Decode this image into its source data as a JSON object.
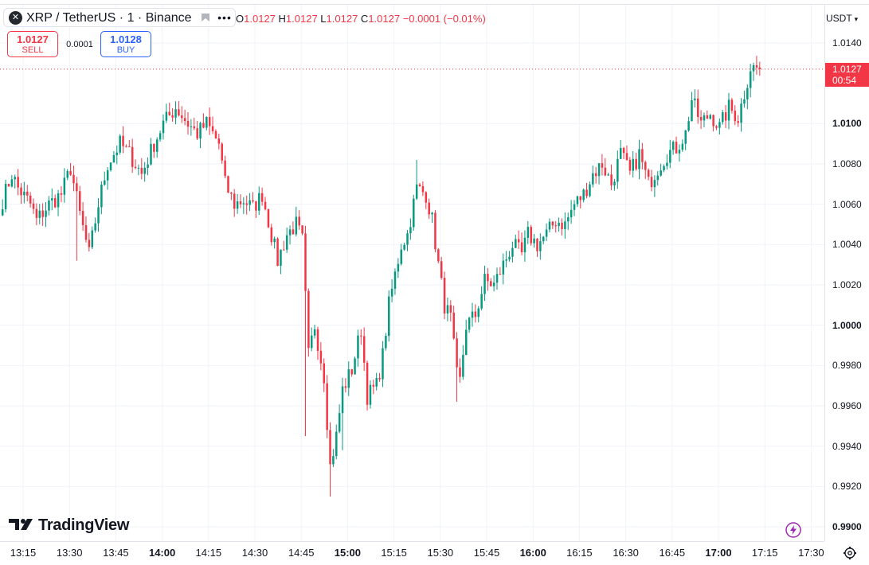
{
  "symbol": {
    "logo_glyph": "✕",
    "title": "XRP / TetherUS · 1 · Binance",
    "more_glyph": "•••"
  },
  "ohlc": {
    "o_label": "O",
    "o_value": "1.0127",
    "h_label": "H",
    "h_value": "1.0127",
    "l_label": "L",
    "l_value": "1.0127",
    "c_label": "C",
    "c_value": "1.0127",
    "change": "−0.0001 (−0.01%)"
  },
  "trade": {
    "sell_price": "1.0127",
    "sell_label": "SELL",
    "spread": "0.0001",
    "buy_price": "1.0128",
    "buy_label": "BUY"
  },
  "price_axis": {
    "currency": "USDT",
    "ticks": [
      {
        "label": "1.0140",
        "bold": false
      },
      {
        "label": "1.0100",
        "bold": true
      },
      {
        "label": "1.0080",
        "bold": false
      },
      {
        "label": "1.0060",
        "bold": false
      },
      {
        "label": "1.0040",
        "bold": false
      },
      {
        "label": "1.0020",
        "bold": false
      },
      {
        "label": "1.0000",
        "bold": true
      },
      {
        "label": "0.9980",
        "bold": false
      },
      {
        "label": "0.9960",
        "bold": false
      },
      {
        "label": "0.9940",
        "bold": false
      },
      {
        "label": "0.9920",
        "bold": false
      },
      {
        "label": "0.9900",
        "bold": true
      }
    ],
    "last_price": "1.0127",
    "countdown": "00:54"
  },
  "time_axis": {
    "ticks": [
      {
        "label": "13:15",
        "bold": false
      },
      {
        "label": "13:30",
        "bold": false
      },
      {
        "label": "13:45",
        "bold": false
      },
      {
        "label": "14:00",
        "bold": true
      },
      {
        "label": "14:15",
        "bold": false
      },
      {
        "label": "14:30",
        "bold": false
      },
      {
        "label": "14:45",
        "bold": false
      },
      {
        "label": "15:00",
        "bold": true
      },
      {
        "label": "15:15",
        "bold": false
      },
      {
        "label": "15:30",
        "bold": false
      },
      {
        "label": "15:45",
        "bold": false
      },
      {
        "label": "16:00",
        "bold": true
      },
      {
        "label": "16:15",
        "bold": false
      },
      {
        "label": "16:30",
        "bold": false
      },
      {
        "label": "16:45",
        "bold": false
      },
      {
        "label": "17:00",
        "bold": true
      },
      {
        "label": "17:15",
        "bold": false
      },
      {
        "label": "17:30",
        "bold": false
      }
    ]
  },
  "branding": {
    "logo_text": "TradingView"
  },
  "colors": {
    "up": "#089981",
    "down": "#f23645",
    "grid": "#f0f3fa",
    "text": "#131722",
    "buy": "#2962ff"
  },
  "chart_data": {
    "type": "candlestick",
    "interval": "1",
    "start_time": "13:11",
    "ylim": [
      0.99,
      1.014
    ],
    "last_price": 1.0127,
    "waypoints": [
      [
        0,
        1.0062
      ],
      [
        3,
        1.0075
      ],
      [
        5,
        1.0068
      ],
      [
        9,
        1.006
      ],
      [
        11,
        1.0052
      ],
      [
        15,
        1.006
      ],
      [
        19,
        1.0065
      ],
      [
        22,
        1.0078
      ],
      [
        25,
        1.0055
      ],
      [
        28,
        1.0035
      ],
      [
        31,
        1.006
      ],
      [
        34,
        1.008
      ],
      [
        38,
        1.009
      ],
      [
        41,
        1.0085
      ],
      [
        45,
        1.0075
      ],
      [
        49,
        1.009
      ],
      [
        52,
        1.01
      ],
      [
        56,
        1.0108
      ],
      [
        60,
        1.01
      ],
      [
        63,
        1.0095
      ],
      [
        66,
        1.01
      ],
      [
        70,
        1.009
      ],
      [
        72,
        1.007
      ],
      [
        75,
        1.006
      ],
      [
        78,
        1.0062
      ],
      [
        81,
        1.0058
      ],
      [
        84,
        1.0065
      ],
      [
        87,
        1.0045
      ],
      [
        89,
        1.0032
      ],
      [
        92,
        1.0045
      ],
      [
        95,
        1.005
      ],
      [
        97,
        1.0042
      ],
      [
        99,
        0.9985
      ],
      [
        101,
        1.0
      ],
      [
        104,
        0.9975
      ],
      [
        106,
        0.993
      ],
      [
        108,
        0.9945
      ],
      [
        110,
        0.9968
      ],
      [
        113,
        0.9978
      ],
      [
        116,
        0.9998
      ],
      [
        118,
        0.9965
      ],
      [
        121,
        0.997
      ],
      [
        123,
        0.9985
      ],
      [
        125,
        1.001
      ],
      [
        127,
        1.0025
      ],
      [
        129,
        1.004
      ],
      [
        131,
        1.0045
      ],
      [
        134,
        1.0068
      ],
      [
        137,
        1.0065
      ],
      [
        139,
        1.0052
      ],
      [
        141,
        1.003
      ],
      [
        143,
        1.001
      ],
      [
        145,
        1.0003
      ],
      [
        147,
        0.9975
      ],
      [
        148,
        0.9972
      ],
      [
        150,
        1.0
      ],
      [
        153,
        1.0005
      ],
      [
        156,
        1.0022
      ],
      [
        159,
        1.002
      ],
      [
        162,
        1.003
      ],
      [
        165,
        1.004
      ],
      [
        168,
        1.0035
      ],
      [
        170,
        1.0045
      ],
      [
        173,
        1.004
      ],
      [
        176,
        1.0045
      ],
      [
        179,
        1.0052
      ],
      [
        182,
        1.005
      ],
      [
        185,
        1.006
      ],
      [
        188,
        1.0065
      ],
      [
        191,
        1.0075
      ],
      [
        194,
        1.008
      ],
      [
        197,
        1.007
      ],
      [
        200,
        1.0085
      ],
      [
        203,
        1.0075
      ],
      [
        206,
        1.0085
      ],
      [
        209,
        1.007
      ],
      [
        212,
        1.0078
      ],
      [
        215,
        1.0085
      ],
      [
        218,
        1.0088
      ],
      [
        221,
        1.0095
      ],
      [
        223,
        1.0112
      ],
      [
        226,
        1.01
      ],
      [
        229,
        1.0105
      ],
      [
        232,
        1.0098
      ],
      [
        235,
        1.0108
      ],
      [
        238,
        1.0103
      ],
      [
        240,
        1.0115
      ],
      [
        242,
        1.0128
      ],
      [
        245,
        1.0127
      ]
    ],
    "notable_wicks": [
      {
        "index": 98,
        "low": 0.9945
      },
      {
        "index": 106,
        "low": 0.9915
      },
      {
        "index": 134,
        "high": 1.0082
      },
      {
        "index": 147,
        "low": 0.9962
      },
      {
        "index": 110,
        "low": 0.9938
      },
      {
        "index": 24,
        "low": 1.0032
      }
    ]
  }
}
